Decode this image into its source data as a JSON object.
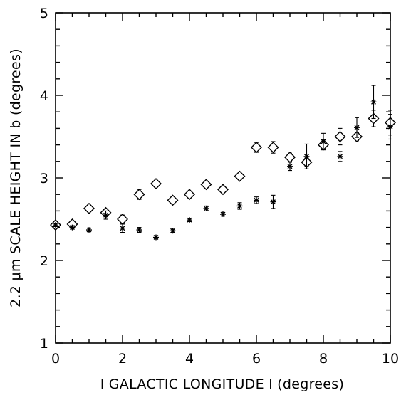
{
  "chart_data": {
    "type": "scatter",
    "xlabel": "l GALACTIC LONGITUDE l (degrees)",
    "ylabel": "2.2 μm SCALE HEIGHT IN b (degrees)",
    "xlim": [
      0,
      10
    ],
    "ylim": [
      1,
      5
    ],
    "x_ticks": [
      0,
      2,
      4,
      6,
      8,
      10
    ],
    "y_ticks": [
      1,
      2,
      3,
      4,
      5
    ],
    "grid": false,
    "series": [
      {
        "marker": "diamond",
        "points": [
          {
            "x": 0.0,
            "y": 2.43,
            "err": 0.03
          },
          {
            "x": 0.5,
            "y": 2.44,
            "err": 0.03
          },
          {
            "x": 1.0,
            "y": 2.63,
            "err": 0.04
          },
          {
            "x": 1.5,
            "y": 2.58,
            "err": 0.04
          },
          {
            "x": 2.0,
            "y": 2.5,
            "err": 0.05
          },
          {
            "x": 2.5,
            "y": 2.8,
            "err": 0.06
          },
          {
            "x": 3.0,
            "y": 2.93,
            "err": 0.04
          },
          {
            "x": 3.5,
            "y": 2.73,
            "err": 0.04
          },
          {
            "x": 4.0,
            "y": 2.8,
            "err": 0.04
          },
          {
            "x": 4.5,
            "y": 2.92,
            "err": 0.04
          },
          {
            "x": 5.0,
            "y": 2.86,
            "err": 0.04
          },
          {
            "x": 5.5,
            "y": 3.02,
            "err": 0.04
          },
          {
            "x": 6.0,
            "y": 3.37,
            "err": 0.06
          },
          {
            "x": 6.5,
            "y": 3.37,
            "err": 0.07
          },
          {
            "x": 7.0,
            "y": 3.25,
            "err": 0.05
          },
          {
            "x": 7.5,
            "y": 3.19,
            "err": 0.05
          },
          {
            "x": 8.0,
            "y": 3.4,
            "err": 0.06
          },
          {
            "x": 8.5,
            "y": 3.5,
            "err": 0.1
          },
          {
            "x": 9.0,
            "y": 3.5,
            "err": 0.05
          },
          {
            "x": 9.5,
            "y": 3.72,
            "err": 0.1
          },
          {
            "x": 10.0,
            "y": 3.67,
            "err": 0.15
          }
        ]
      },
      {
        "marker": "asterisk",
        "points": [
          {
            "x": 0.0,
            "y": 2.43,
            "err": 0.02
          },
          {
            "x": 0.5,
            "y": 2.4,
            "err": 0.02
          },
          {
            "x": 1.0,
            "y": 2.37,
            "err": 0.02
          },
          {
            "x": 1.5,
            "y": 2.55,
            "err": 0.05
          },
          {
            "x": 2.0,
            "y": 2.39,
            "err": 0.05
          },
          {
            "x": 2.5,
            "y": 2.37,
            "err": 0.03
          },
          {
            "x": 3.0,
            "y": 2.28,
            "err": 0.02
          },
          {
            "x": 3.5,
            "y": 2.36,
            "err": 0.02
          },
          {
            "x": 4.0,
            "y": 2.49,
            "err": 0.02
          },
          {
            "x": 4.5,
            "y": 2.63,
            "err": 0.03
          },
          {
            "x": 5.0,
            "y": 2.56,
            "err": 0.02
          },
          {
            "x": 5.5,
            "y": 2.66,
            "err": 0.04
          },
          {
            "x": 6.0,
            "y": 2.73,
            "err": 0.04
          },
          {
            "x": 6.5,
            "y": 2.71,
            "err": 0.08
          },
          {
            "x": 7.0,
            "y": 3.14,
            "err": 0.05
          },
          {
            "x": 7.5,
            "y": 3.26,
            "err": 0.15
          },
          {
            "x": 8.0,
            "y": 3.44,
            "err": 0.1
          },
          {
            "x": 8.5,
            "y": 3.26,
            "err": 0.06
          },
          {
            "x": 9.0,
            "y": 3.61,
            "err": 0.12
          },
          {
            "x": 9.5,
            "y": 3.92,
            "err": 0.2
          },
          {
            "x": 10.0,
            "y": 3.62,
            "err": 0.15
          }
        ]
      }
    ]
  }
}
